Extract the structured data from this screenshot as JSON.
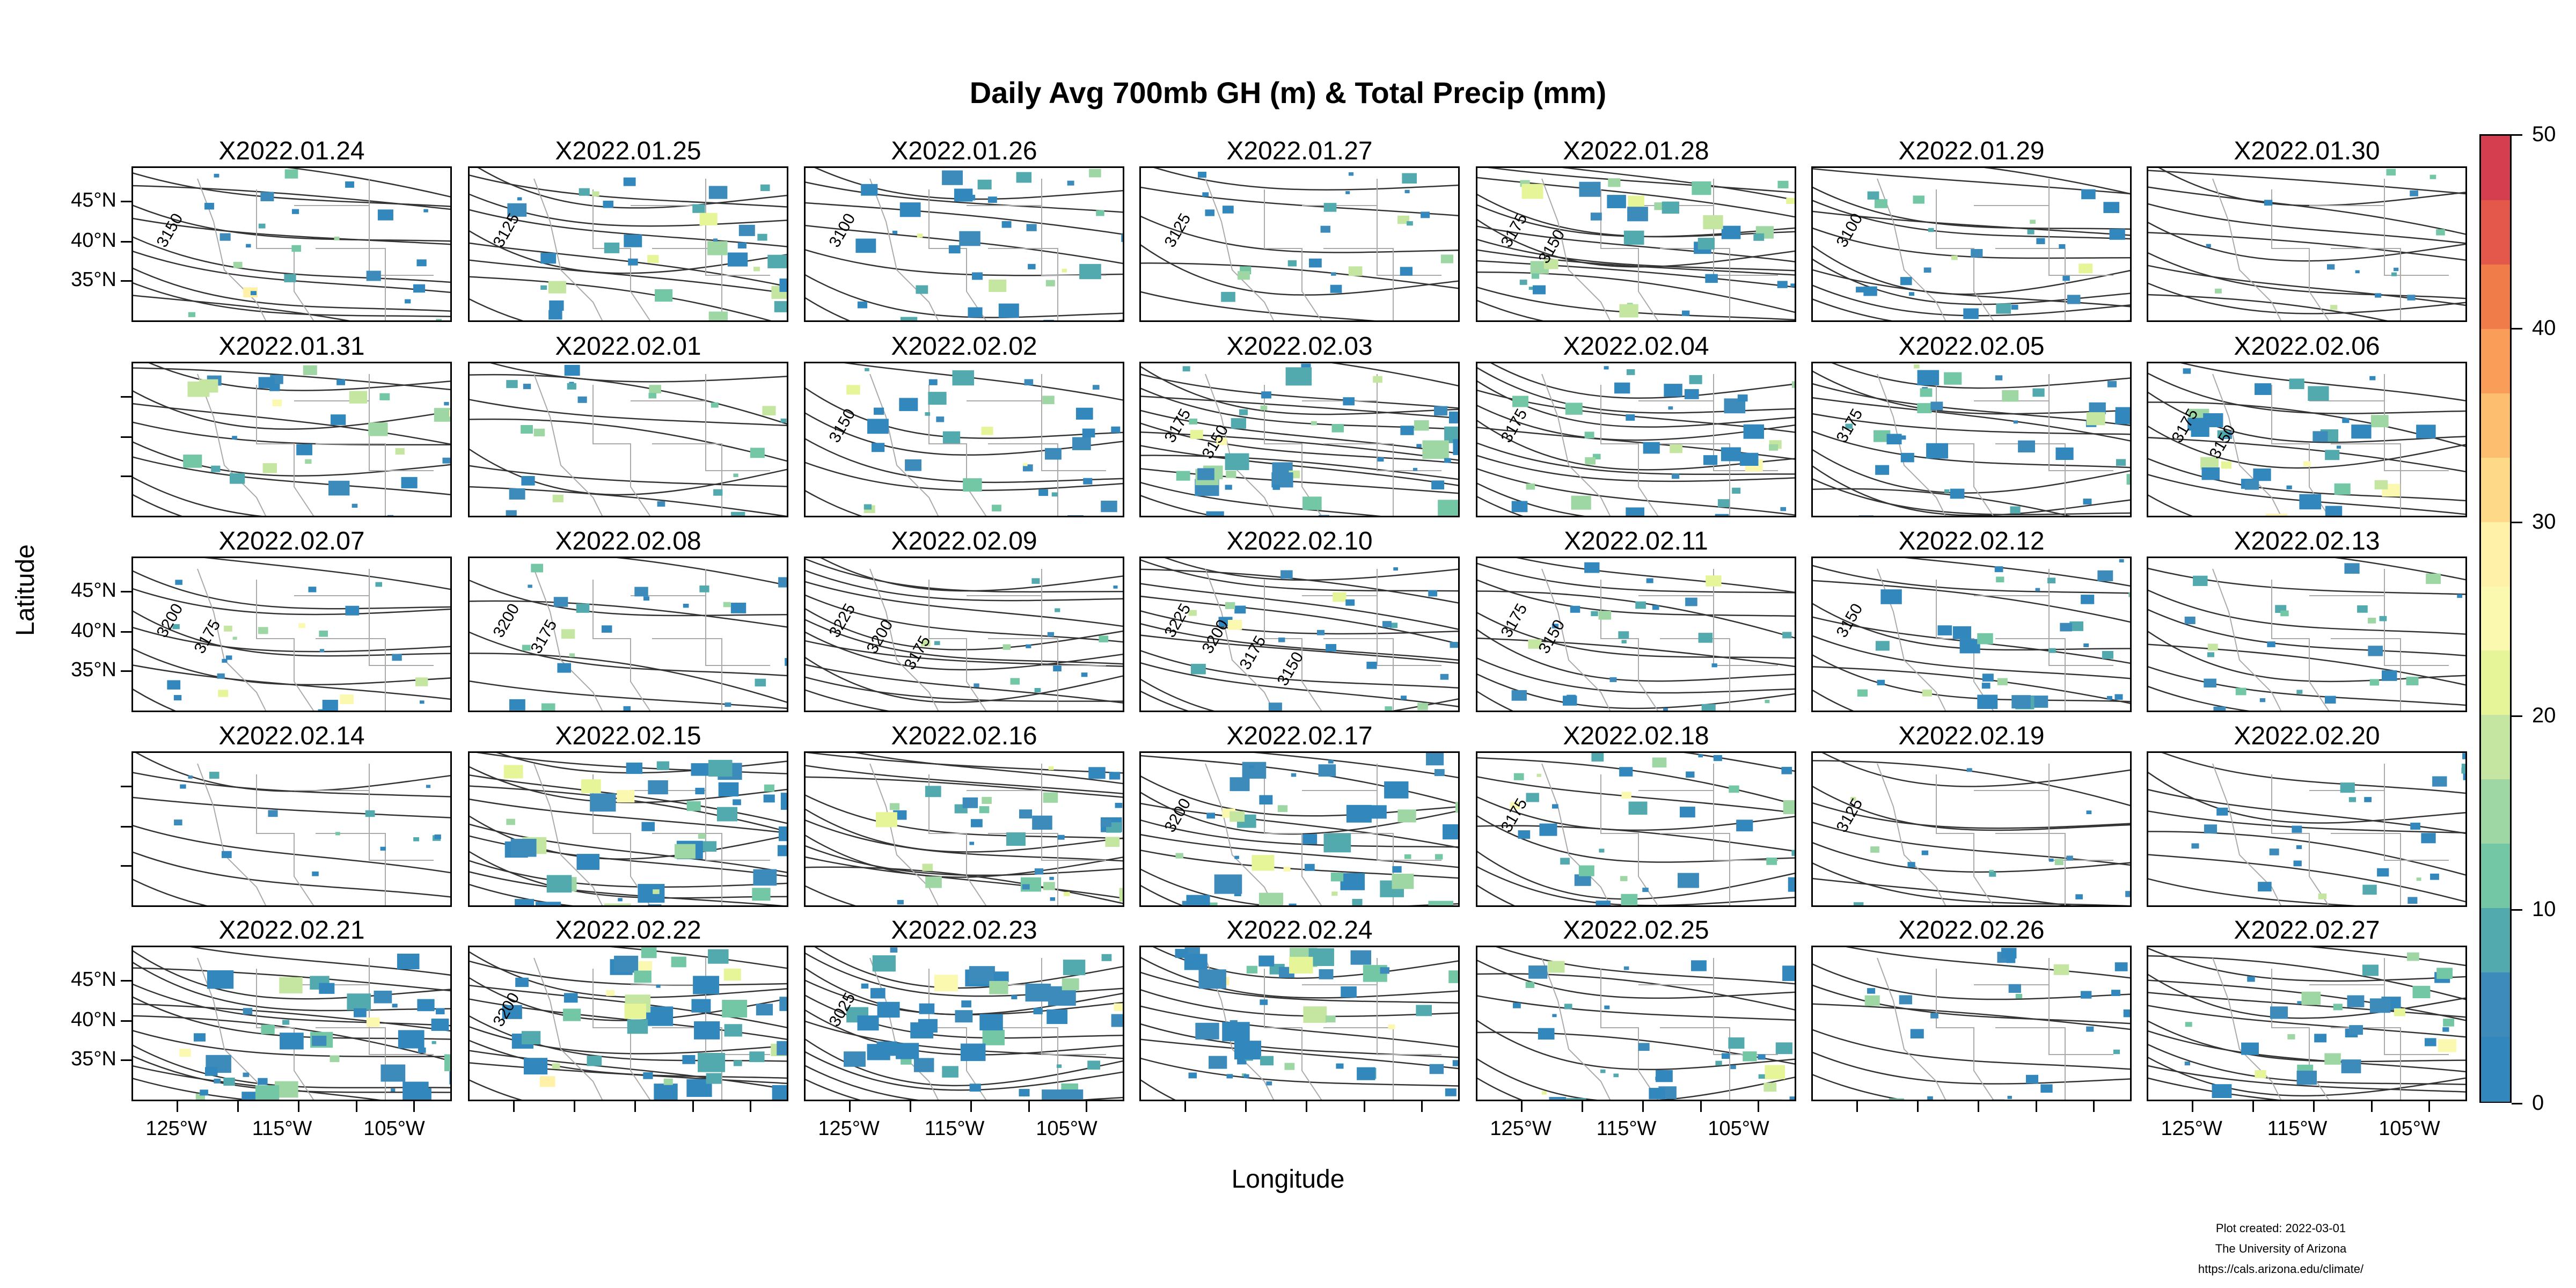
{
  "title": "Daily Avg 700mb GH (m) & Total Precip (mm)",
  "x_axis_label": "Longitude",
  "y_axis_label": "Latitude",
  "lat_tick_labels": [
    "45°N",
    "40°N",
    "35°N"
  ],
  "lon_tick_labels": [
    "125°W",
    "115°W",
    "105°W"
  ],
  "colorbar": {
    "labels": [
      "50",
      "40",
      "30",
      "20",
      "10",
      "0"
    ],
    "range": [
      0,
      50
    ],
    "colors": [
      "#d53e4f",
      "#e3584b",
      "#f07c4a",
      "#f99d59",
      "#fdbe6f",
      "#fed988",
      "#fff1a8",
      "#fbf8b0",
      "#e6f598",
      "#c5e6a0",
      "#9ed6a4",
      "#73c7a4",
      "#52aaae",
      "#3d8bbb",
      "#3288bd"
    ]
  },
  "credit": {
    "line1": "Plot created: 2022-03-01",
    "line2": "The University of Arizona",
    "line3": "https://cals.arizona.edu/climate/"
  },
  "panels": [
    {
      "date": "X2022.01.24",
      "contours": [
        "3150"
      ],
      "precip": 2
    },
    {
      "date": "X2022.01.25",
      "contours": [
        "3125"
      ],
      "precip": 3
    },
    {
      "date": "X2022.01.26",
      "contours": [
        "3100"
      ],
      "precip": 3
    },
    {
      "date": "X2022.01.27",
      "contours": [
        "3125"
      ],
      "precip": 2
    },
    {
      "date": "X2022.01.28",
      "contours": [
        "3175",
        "3150"
      ],
      "precip": 3
    },
    {
      "date": "X2022.01.29",
      "contours": [
        "3100"
      ],
      "precip": 2
    },
    {
      "date": "X2022.01.30",
      "contours": [],
      "precip": 1
    },
    {
      "date": "X2022.01.31",
      "contours": [],
      "precip": 3
    },
    {
      "date": "X2022.02.01",
      "contours": [],
      "precip": 2
    },
    {
      "date": "X2022.02.02",
      "contours": [
        "3150"
      ],
      "precip": 3
    },
    {
      "date": "X2022.02.03",
      "contours": [
        "3175",
        "3150"
      ],
      "precip": 4
    },
    {
      "date": "X2022.02.04",
      "contours": [
        "3175"
      ],
      "precip": 3
    },
    {
      "date": "X2022.02.05",
      "contours": [
        "3175"
      ],
      "precip": 3
    },
    {
      "date": "X2022.02.06",
      "contours": [
        "3175",
        "3150"
      ],
      "precip": 3
    },
    {
      "date": "X2022.02.07",
      "contours": [
        "3200",
        "3175"
      ],
      "precip": 2
    },
    {
      "date": "X2022.02.08",
      "contours": [
        "3200",
        "3175"
      ],
      "precip": 2
    },
    {
      "date": "X2022.02.09",
      "contours": [
        "3225",
        "3200",
        "3175"
      ],
      "precip": 1
    },
    {
      "date": "X2022.02.10",
      "contours": [
        "3225",
        "3200",
        "3175",
        "3150"
      ],
      "precip": 2
    },
    {
      "date": "X2022.02.11",
      "contours": [
        "3175",
        "3150"
      ],
      "precip": 2
    },
    {
      "date": "X2022.02.12",
      "contours": [
        "3150"
      ],
      "precip": 3
    },
    {
      "date": "X2022.02.13",
      "contours": [],
      "precip": 2
    },
    {
      "date": "X2022.02.14",
      "contours": [],
      "precip": 1
    },
    {
      "date": "X2022.02.15",
      "contours": [],
      "precip": 4
    },
    {
      "date": "X2022.02.16",
      "contours": [],
      "precip": 3
    },
    {
      "date": "X2022.02.17",
      "contours": [
        "3200"
      ],
      "precip": 4
    },
    {
      "date": "X2022.02.18",
      "contours": [
        "3175"
      ],
      "precip": 3
    },
    {
      "date": "X2022.02.19",
      "contours": [
        "3125"
      ],
      "precip": 1
    },
    {
      "date": "X2022.02.20",
      "contours": [],
      "precip": 2
    },
    {
      "date": "X2022.02.21",
      "contours": [],
      "precip": 4
    },
    {
      "date": "X2022.02.22",
      "contours": [
        "3200"
      ],
      "precip": 4
    },
    {
      "date": "X2022.02.23",
      "contours": [
        "3025"
      ],
      "precip": 4
    },
    {
      "date": "X2022.02.24",
      "contours": [],
      "precip": 4
    },
    {
      "date": "X2022.02.25",
      "contours": [],
      "precip": 3
    },
    {
      "date": "X2022.02.26",
      "contours": [],
      "precip": 2
    },
    {
      "date": "X2022.02.27",
      "contours": [],
      "precip": 3
    }
  ]
}
